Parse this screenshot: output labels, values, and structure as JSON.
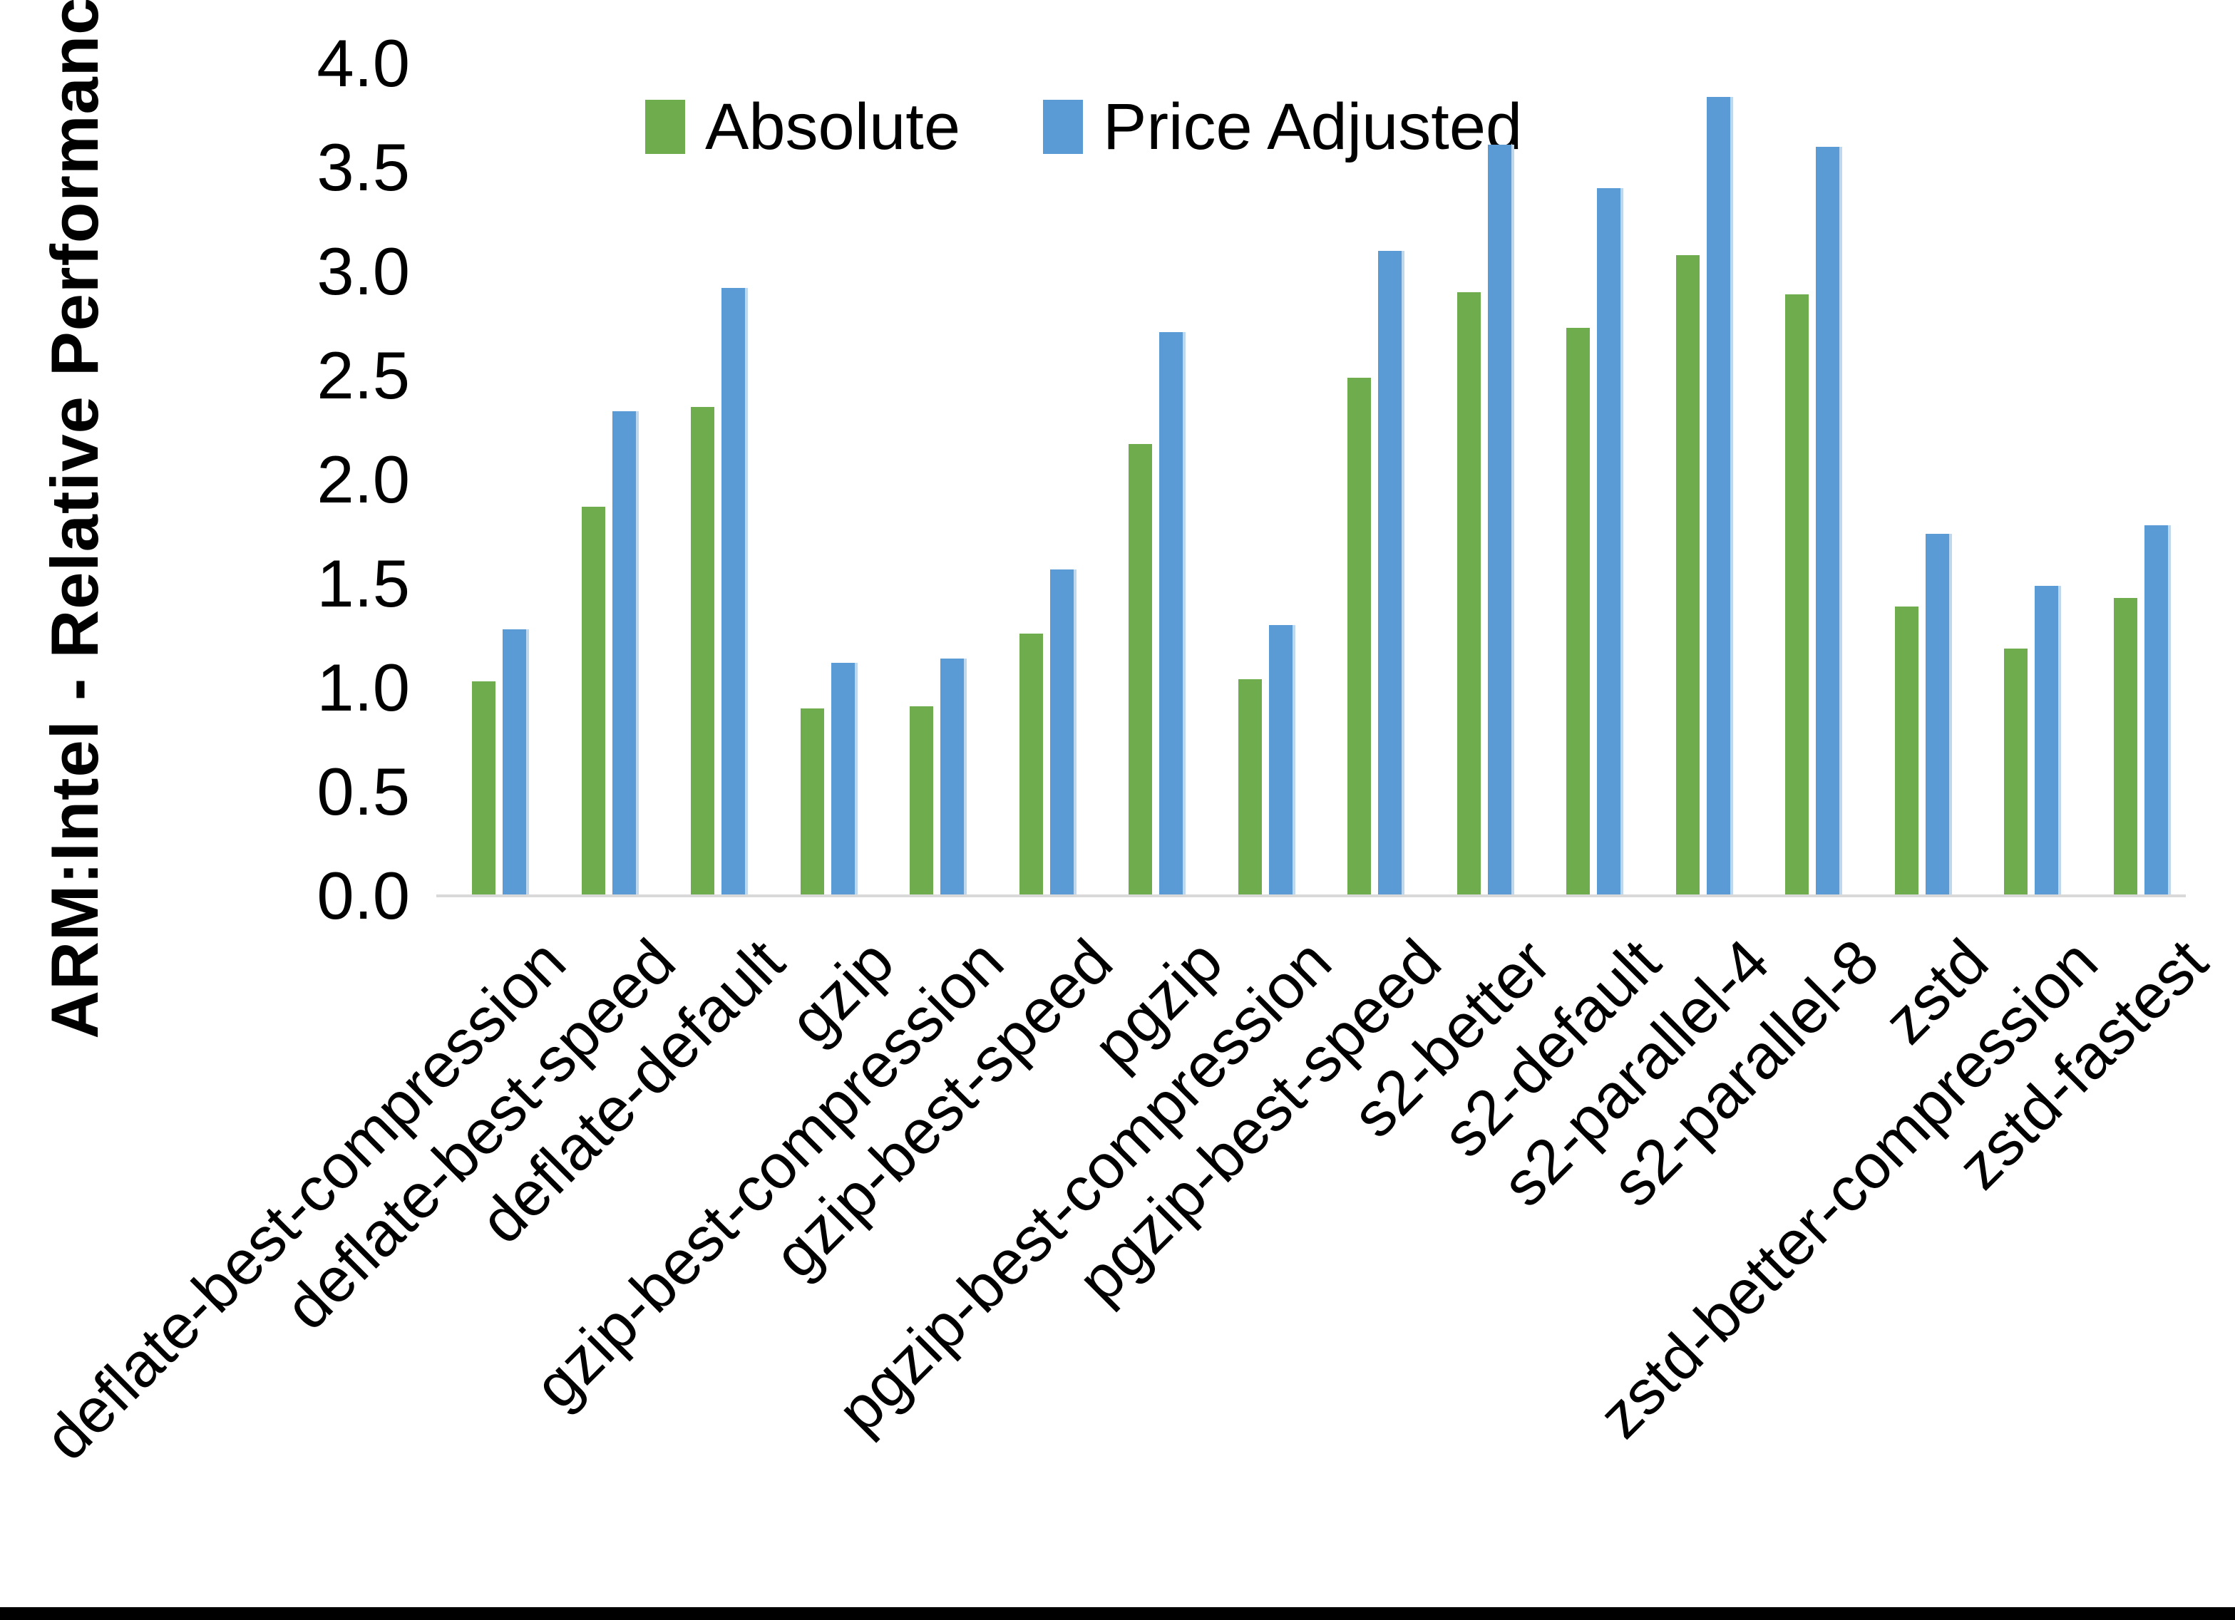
{
  "colors": {
    "absolute": "#6FAC4D",
    "price_adjusted": "#5B9BD5",
    "price_adjusted_edge": "#BDD7EE",
    "axis_line": "#D9D9D9",
    "bottom_bar": "#000000"
  },
  "legend": {
    "items": [
      {
        "label": "Absolute",
        "color": "#6FAC4D"
      },
      {
        "label": "Price Adjusted",
        "color": "#5B9BD5"
      }
    ]
  },
  "y_axis": {
    "tick_labels": [
      "0.0",
      "0.5",
      "1.0",
      "1.5",
      "2.0",
      "2.5",
      "3.0",
      "3.5",
      "4.0"
    ],
    "tick_values": [
      0,
      0.5,
      1,
      1.5,
      2,
      2.5,
      3,
      3.5,
      4
    ]
  },
  "chart_data": {
    "type": "bar",
    "title": "",
    "ylabel": "ARM:Intel - Relative Performance",
    "xlabel": "",
    "ylim": [
      0,
      4
    ],
    "grid": false,
    "legend_position": "top",
    "categories": [
      "deflate-best-compression",
      "deflate-best-speed",
      "deflate-default",
      "gzip",
      "gzip-best-compression",
      "gzip-best-speed",
      "pgzip",
      "pgzip-best-compression",
      "pgzip-best-speed",
      "s2-better",
      "s2-default",
      "s2-parallel-4",
      "s2-parallel-8",
      "zstd",
      "zstd-better-compression",
      "zstd-fastest"
    ],
    "series": [
      {
        "name": "Absolute",
        "values": [
          1.03,
          1.87,
          2.35,
          0.9,
          0.91,
          1.26,
          2.17,
          1.04,
          2.49,
          2.9,
          2.73,
          3.08,
          2.89,
          1.39,
          1.19,
          1.43
        ]
      },
      {
        "name": "Price Adjusted",
        "values": [
          1.28,
          2.33,
          2.92,
          1.12,
          1.14,
          1.57,
          2.71,
          1.3,
          3.1,
          3.61,
          3.4,
          3.84,
          3.6,
          1.74,
          1.49,
          1.78
        ]
      }
    ]
  }
}
